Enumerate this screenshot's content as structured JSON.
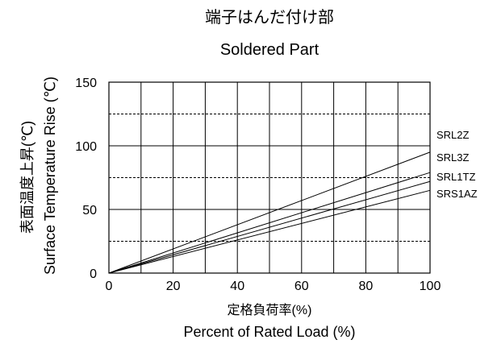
{
  "chart_data": {
    "type": "line",
    "title": "端子はんだ付け部",
    "subtitle": "Soldered Part",
    "xlabel": "定格負荷率(%)",
    "xlabel_en": "Percent of Rated Load (%)",
    "ylabel": "表面温度上昇(℃)",
    "ylabel_en": "Surface Temperature Rise (℃)",
    "xlim": [
      0,
      100
    ],
    "ylim": [
      0,
      150
    ],
    "x_ticks": [
      0,
      20,
      40,
      60,
      80,
      100
    ],
    "y_ticks": [
      0,
      50,
      100,
      150
    ],
    "x_tick_labels": [
      "0",
      "20",
      "40",
      "60",
      "80",
      "100"
    ],
    "y_tick_labels": [
      "0",
      "50",
      "100",
      "150"
    ],
    "grid": true,
    "x_grid_step": 10,
    "y_grid_solid": [
      50,
      100
    ],
    "y_grid_dashed": [
      25,
      75,
      125
    ],
    "line_color": "#000000",
    "series": [
      {
        "name": "SRL2Z",
        "x": [
          0,
          100
        ],
        "y": [
          0,
          95
        ]
      },
      {
        "name": "SRL3Z",
        "x": [
          0,
          100
        ],
        "y": [
          0,
          79
        ]
      },
      {
        "name": "SRL1TZ",
        "x": [
          0,
          100
        ],
        "y": [
          0,
          72
        ]
      },
      {
        "name": "SRS1AZ",
        "x": [
          0,
          100
        ],
        "y": [
          0,
          65
        ]
      }
    ]
  }
}
